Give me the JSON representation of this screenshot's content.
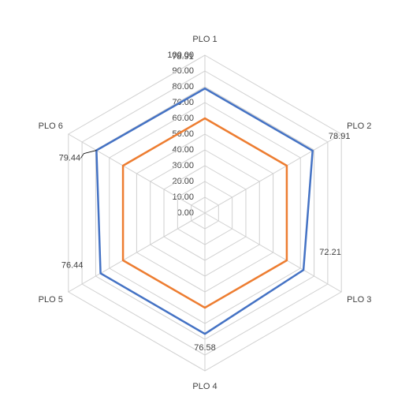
{
  "chart_data": {
    "type": "radar",
    "categories": [
      "PLO 1",
      "PLO 2",
      "PLO 3",
      "PLO 4",
      "PLO 5",
      "PLO 6"
    ],
    "series": [
      {
        "color": "#4472c4",
        "values": [
          78.91,
          78.91,
          72.21,
          76.58,
          76.44,
          79.44
        ]
      },
      {
        "color": "#ed7d31",
        "values": [
          60,
          60,
          60,
          60,
          60,
          60
        ]
      }
    ],
    "ylim": [
      0,
      100
    ],
    "yticks": [
      {
        "value": 0,
        "label": "0.00"
      },
      {
        "value": 10,
        "label": "10.00"
      },
      {
        "value": 20,
        "label": "20.00"
      },
      {
        "value": 30,
        "label": "30.00"
      },
      {
        "value": 40,
        "label": "40.00"
      },
      {
        "value": 50,
        "label": "50.00"
      },
      {
        "value": 60,
        "label": "60.00"
      },
      {
        "value": 70,
        "label": "70.00"
      },
      {
        "value": 80,
        "label": "80.00"
      },
      {
        "value": 90,
        "label": "90.00"
      },
      {
        "value": 100,
        "label": "100.00"
      }
    ],
    "grid": true,
    "data_labels_series": 0
  }
}
